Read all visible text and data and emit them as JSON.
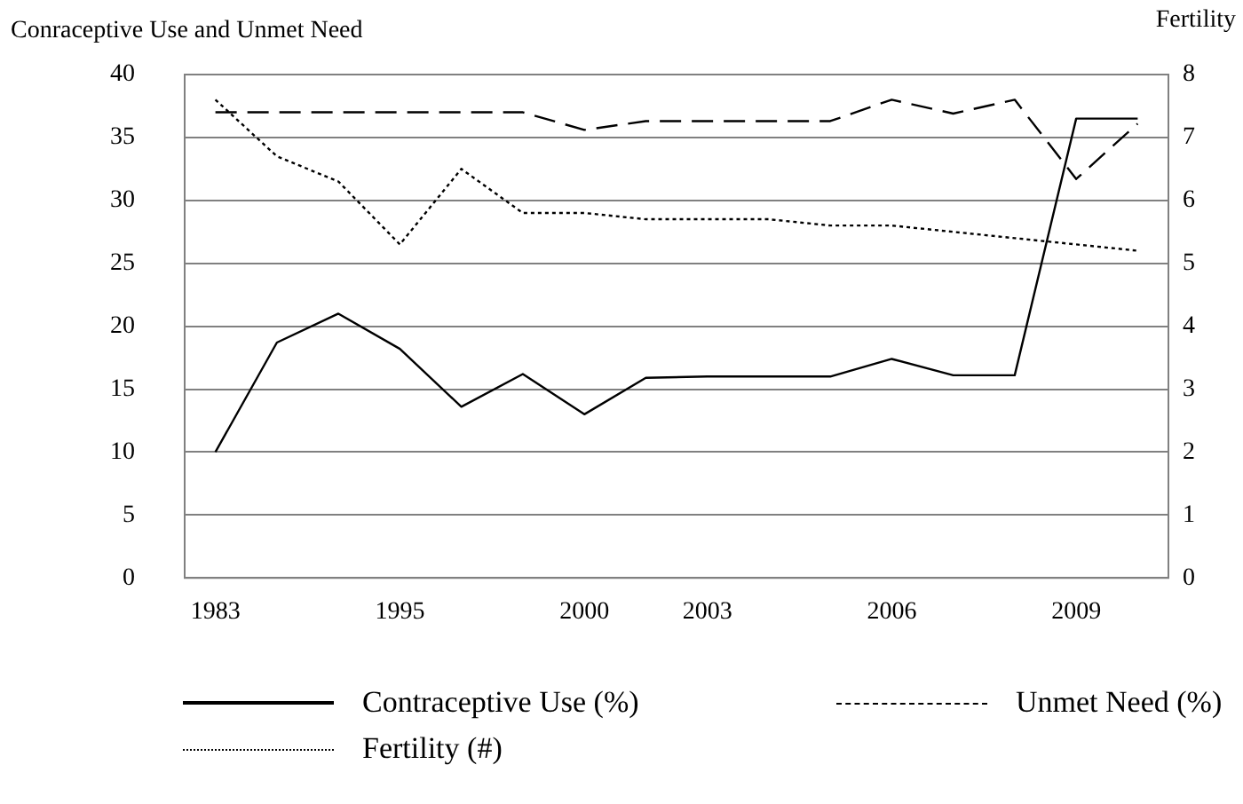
{
  "chart_data": {
    "type": "line",
    "ylabel": "Conraceptive Use and Unmet Need",
    "y2label": "Fertility",
    "categories": [
      "1983",
      null,
      null,
      "1995",
      null,
      null,
      "2000",
      null,
      "2003",
      null,
      null,
      "2006",
      null,
      null,
      "2009",
      null
    ],
    "series": [
      {
        "name": "Contraceptive Use (%)",
        "color": "#000000",
        "line_style": "solid",
        "values": [
          10,
          18.7,
          21,
          18.2,
          13.6,
          16.2,
          13,
          15.9,
          16,
          16,
          16,
          17.4,
          16.1,
          16.1,
          36.5,
          36.5
        ]
      },
      {
        "name": "Unmet Need (%)",
        "color": "#000000",
        "line_style": "dashed",
        "values": [
          37,
          37,
          37,
          37,
          37,
          37,
          35.6,
          36.3,
          36.3,
          36.3,
          36.3,
          38,
          36.9,
          38,
          31.7,
          36.1
        ]
      },
      {
        "name": "Fertility (#)",
        "color": "#000000",
        "line_style": "dotted",
        "axis": "y2",
        "values": [
          7.6,
          6.7,
          6.3,
          5.3,
          6.5,
          5.8,
          5.8,
          5.7,
          5.7,
          5.7,
          5.6,
          5.6,
          5.5,
          5.4,
          5.3,
          5.2
        ]
      }
    ],
    "ylim": [
      0,
      40
    ],
    "yticks": [
      0,
      5,
      10,
      15,
      20,
      25,
      30,
      35,
      40
    ],
    "y2lim": [
      0,
      8
    ],
    "y2ticks": [
      0,
      1,
      2,
      3,
      4,
      5,
      6,
      7,
      8
    ],
    "grid": "y",
    "legend": "bottom",
    "marker": "none"
  }
}
